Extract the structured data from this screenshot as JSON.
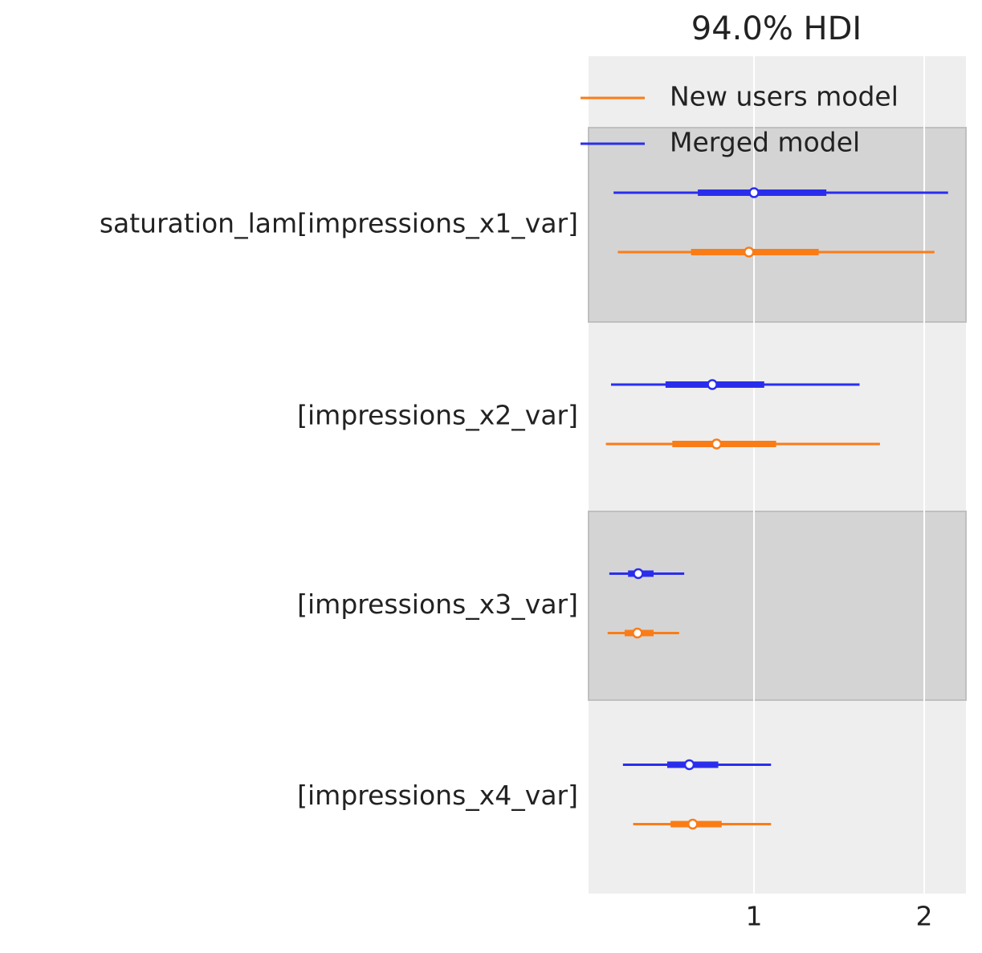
{
  "chart_data": {
    "type": "forest",
    "title": "94.0% HDI",
    "categories": [
      "saturation_lam[impressions_x1_var]",
      "[impressions_x2_var]",
      "[impressions_x3_var]",
      "[impressions_x4_var]"
    ],
    "series": [
      {
        "name": "New users model",
        "color": "#fa7c17",
        "median": [
          0.97,
          0.78,
          0.315,
          0.64
        ],
        "hdi_low": [
          0.2,
          0.13,
          0.14,
          0.29
        ],
        "hdi_high": [
          2.06,
          1.74,
          0.56,
          1.1
        ],
        "iqr_low": [
          0.63,
          0.52,
          0.24,
          0.51
        ],
        "iqr_high": [
          1.38,
          1.13,
          0.41,
          0.81
        ]
      },
      {
        "name": "Merged model",
        "color": "#2a2eec",
        "median": [
          1.0,
          0.755,
          0.32,
          0.62
        ],
        "hdi_low": [
          0.175,
          0.16,
          0.15,
          0.23
        ],
        "hdi_high": [
          2.14,
          1.62,
          0.59,
          1.1
        ],
        "iqr_low": [
          0.67,
          0.48,
          0.26,
          0.49
        ],
        "iqr_high": [
          1.425,
          1.06,
          0.41,
          0.79
        ]
      }
    ],
    "xlim": [
      0.028,
      2.245
    ],
    "xticks": [
      1,
      2
    ],
    "grid": true,
    "legend": "upper right"
  }
}
